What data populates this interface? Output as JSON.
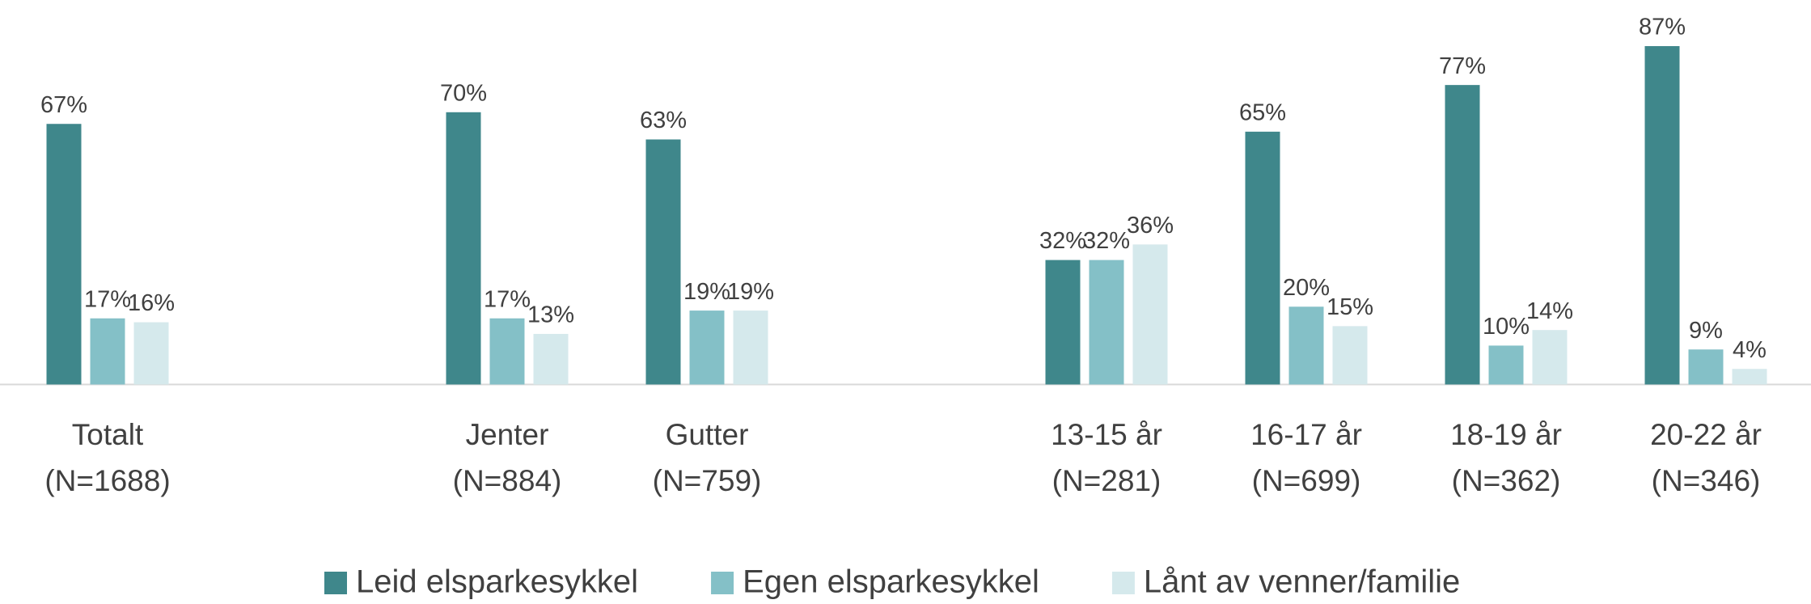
{
  "chart_data": {
    "type": "bar",
    "categories": [
      [
        "Totalt",
        "(N=1688)"
      ],
      null,
      [
        "Jenter",
        "(N=884)"
      ],
      [
        "Gutter",
        "(N=759)"
      ],
      null,
      [
        "13-15 år",
        "(N=281)"
      ],
      [
        "16-17 år",
        "(N=699)"
      ],
      [
        "18-19 år",
        "(N=362)"
      ],
      [
        "20-22 år",
        "(N=346)"
      ]
    ],
    "series": [
      {
        "name": "Leid elsparkesykkel",
        "color": "#3f878b",
        "values": [
          67,
          null,
          70,
          63,
          null,
          32,
          65,
          77,
          87
        ],
        "value_labels": [
          "67%",
          null,
          "70%",
          "63%",
          null,
          "32%",
          "65%",
          "77%",
          "87%"
        ]
      },
      {
        "name": "Egen elsparkesykkel",
        "color": "#84c0c7",
        "values": [
          17,
          null,
          17,
          19,
          null,
          32,
          20,
          10,
          9
        ],
        "value_labels": [
          "17%",
          null,
          "17%",
          "19%",
          null,
          "32%",
          "20%",
          "10%",
          "9%"
        ]
      },
      {
        "name": "Lånt av venner/familie",
        "color": "#d5e9ec",
        "values": [
          16,
          null,
          13,
          19,
          null,
          36,
          15,
          14,
          4
        ],
        "value_labels": [
          "16%",
          null,
          "13%",
          "19%",
          null,
          "36%",
          "15%",
          "14%",
          "4%"
        ]
      }
    ],
    "ylim": [
      0,
      90
    ],
    "legend": "bottom"
  }
}
